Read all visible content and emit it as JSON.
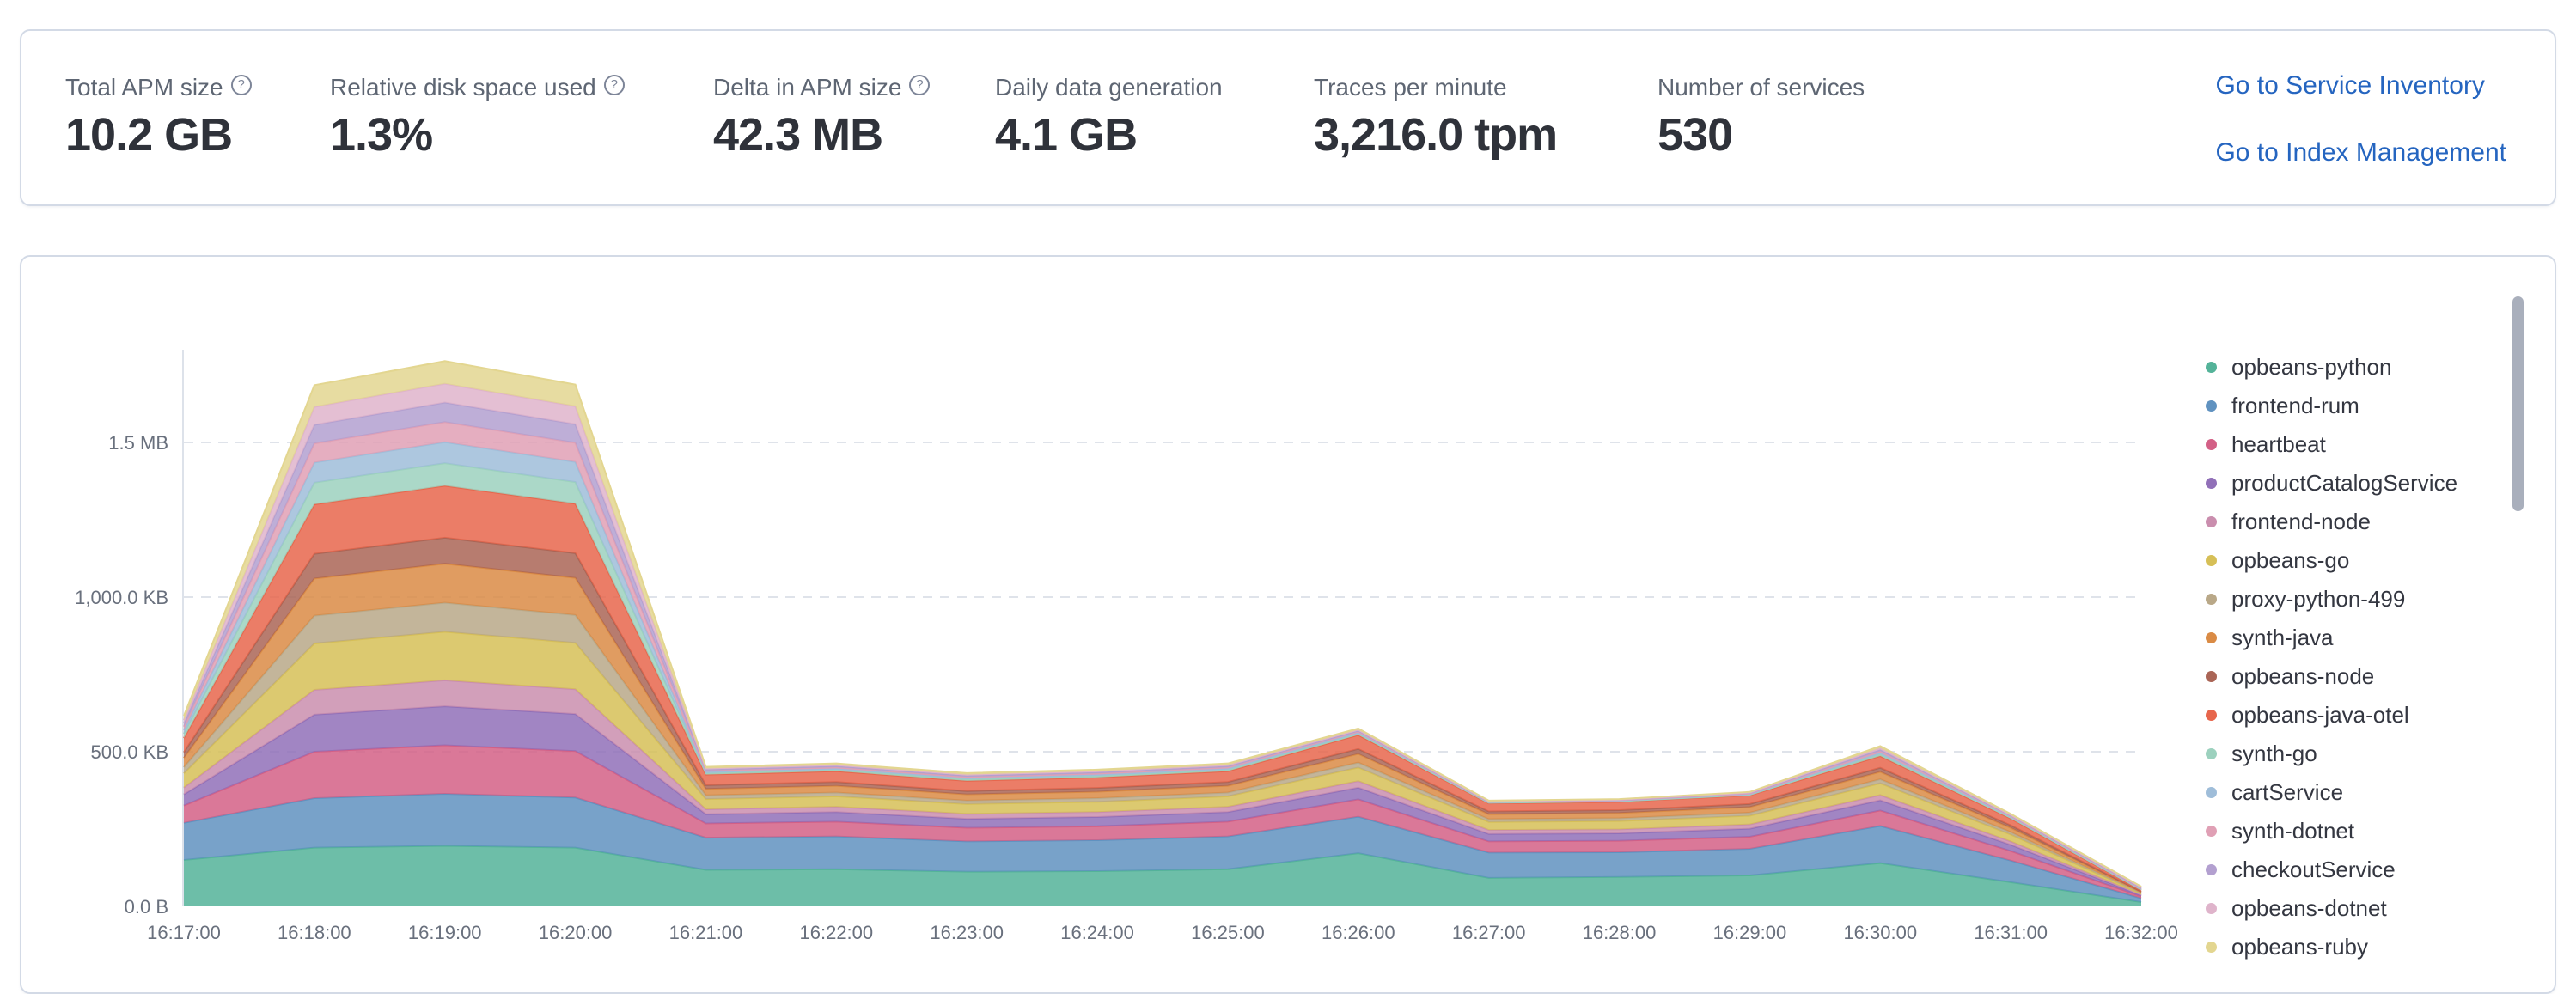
{
  "stats_panel": {
    "stats": [
      {
        "label": "Total APM size",
        "value": "10.2 GB",
        "has_help_icon": true
      },
      {
        "label": "Relative disk space used",
        "value": "1.3%",
        "has_help_icon": true
      },
      {
        "label": "Delta in APM size",
        "value": "42.3 MB",
        "has_help_icon": true
      },
      {
        "label": "Daily data generation",
        "value": "4.1 GB",
        "has_help_icon": false
      },
      {
        "label": "Traces per minute",
        "value": "3,216.0 tpm",
        "has_help_icon": false
      },
      {
        "label": "Number of services",
        "value": "530",
        "has_help_icon": false
      }
    ],
    "help_icon_glyph": "?",
    "links": [
      {
        "label": "Go to Service Inventory"
      },
      {
        "label": "Go to Index Management"
      }
    ]
  },
  "colors": {
    "link_blue": "#2565c0",
    "label_gray": "#5e6673",
    "value_dark": "#2f323a",
    "panel_border": "#d3dae6",
    "gridline": "#dfe3ea",
    "axis_line": "#dde2ea",
    "tick_text": "#69707d",
    "scrollbar_thumb": "#a9afbc"
  },
  "chart_data": {
    "type": "area",
    "stacked": true,
    "unit": "KB",
    "x": [
      "16:17:00",
      "16:18:00",
      "16:19:00",
      "16:20:00",
      "16:21:00",
      "16:22:00",
      "16:23:00",
      "16:24:00",
      "16:25:00",
      "16:26:00",
      "16:27:00",
      "16:28:00",
      "16:29:00",
      "16:30:00",
      "16:31:00",
      "16:32:00"
    ],
    "y_ticks": [
      {
        "label": "0.0 B",
        "kb": 0
      },
      {
        "label": "500.0 KB",
        "kb": 500
      },
      {
        "label": "1,000.0 KB",
        "kb": 1000
      },
      {
        "label": "1.5 MB",
        "kb": 1500
      }
    ],
    "ylim_kb": [
      0,
      1842
    ],
    "grid": "dashed-horizontal",
    "legend_position": "right",
    "legend_scrollable": true,
    "series": [
      {
        "name": "opbeans-python",
        "color": "#54b399",
        "values": [
          150,
          190,
          196,
          190,
          118,
          120,
          112,
          114,
          120,
          172,
          92,
          95,
          100,
          140,
          78,
          14
        ]
      },
      {
        "name": "frontend-rum",
        "color": "#6092c0",
        "values": [
          120,
          160,
          168,
          162,
          104,
          106,
          98,
          100,
          106,
          118,
          82,
          80,
          86,
          120,
          70,
          12
        ]
      },
      {
        "name": "heartbeat",
        "color": "#d36086",
        "values": [
          56,
          150,
          157,
          150,
          46,
          48,
          44,
          45,
          48,
          56,
          36,
          37,
          39,
          50,
          31,
          6
        ]
      },
      {
        "name": "productCatalogService",
        "color": "#9170b8",
        "values": [
          36,
          120,
          126,
          120,
          30,
          31,
          29,
          30,
          31,
          38,
          24,
          24,
          26,
          33,
          20,
          4
        ]
      },
      {
        "name": "frontend-node",
        "color": "#ca8eae",
        "values": [
          22,
          80,
          84,
          80,
          16,
          17,
          16,
          16,
          17,
          21,
          13,
          13,
          14,
          17,
          11,
          2
        ]
      },
      {
        "name": "opbeans-go",
        "color": "#d6bf57",
        "values": [
          46,
          150,
          157,
          150,
          33,
          34,
          32,
          33,
          34,
          44,
          26,
          27,
          28,
          38,
          22,
          4
        ]
      },
      {
        "name": "proxy-python-499",
        "color": "#b9a888",
        "values": [
          20,
          90,
          94,
          90,
          12,
          12,
          11,
          12,
          12,
          16,
          9,
          9,
          10,
          13,
          8,
          2
        ]
      },
      {
        "name": "synth-java",
        "color": "#da8b45",
        "values": [
          30,
          120,
          126,
          120,
          21,
          22,
          20,
          21,
          22,
          28,
          16,
          17,
          18,
          24,
          14,
          2
        ]
      },
      {
        "name": "opbeans-node",
        "color": "#aa6556",
        "values": [
          18,
          80,
          84,
          80,
          12,
          12,
          11,
          12,
          12,
          16,
          9,
          9,
          10,
          13,
          8,
          2
        ]
      },
      {
        "name": "opbeans-java-otel",
        "color": "#e7664c",
        "values": [
          46,
          160,
          168,
          160,
          34,
          35,
          33,
          34,
          35,
          45,
          26,
          27,
          28,
          38,
          22,
          4
        ]
      },
      {
        "name": "synth-go",
        "color": "#9cd1be",
        "values": [
          14,
          70,
          73,
          70,
          5,
          5,
          5,
          5,
          5,
          4,
          2,
          2,
          2,
          6,
          3,
          2
        ]
      },
      {
        "name": "cartService",
        "color": "#9fbdd9",
        "values": [
          12,
          65,
          68,
          65,
          4,
          4,
          4,
          4,
          4,
          4,
          2,
          2,
          2,
          5,
          3,
          2
        ]
      },
      {
        "name": "synth-dotnet",
        "color": "#e0a0b5",
        "values": [
          11,
          62,
          65,
          62,
          4,
          4,
          4,
          4,
          4,
          3,
          1,
          1,
          2,
          5,
          2,
          2
        ]
      },
      {
        "name": "checkoutService",
        "color": "#b3a0d0",
        "values": [
          11,
          60,
          63,
          60,
          4,
          4,
          4,
          4,
          4,
          3,
          1,
          1,
          2,
          5,
          2,
          2
        ]
      },
      {
        "name": "opbeans-dotnet",
        "color": "#dfb4cb",
        "values": [
          10,
          58,
          61,
          58,
          3,
          3,
          3,
          3,
          3,
          3,
          1,
          1,
          1,
          5,
          2,
          2
        ]
      },
      {
        "name": "opbeans-ruby",
        "color": "#e3d690",
        "values": [
          14,
          70,
          73,
          70,
          5,
          5,
          5,
          5,
          5,
          4,
          2,
          2,
          2,
          6,
          3,
          2
        ]
      }
    ]
  }
}
